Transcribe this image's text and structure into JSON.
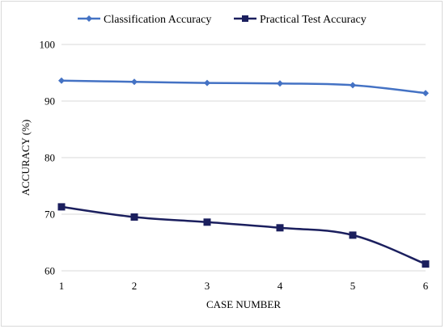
{
  "chart_data": {
    "type": "line",
    "title": "",
    "xlabel": "CASE NUMBER",
    "ylabel": "ACCURACY (%)",
    "categories": [
      "1",
      "2",
      "3",
      "4",
      "5",
      "6"
    ],
    "ylim": [
      60,
      100
    ],
    "yticks": [
      "60",
      "70",
      "80",
      "90",
      "100"
    ],
    "grid": "horizontal",
    "legend": "top",
    "series": [
      {
        "name": "Classification Accuracy",
        "values": [
          93.6,
          93.4,
          93.2,
          93.1,
          92.8,
          91.4
        ],
        "color": "#4472c4",
        "marker": "diamond"
      },
      {
        "name": "Practical Test Accuracy",
        "values": [
          71.3,
          69.5,
          68.6,
          67.6,
          66.3,
          61.2
        ],
        "color": "#1b1f5e",
        "marker": "square"
      }
    ]
  }
}
